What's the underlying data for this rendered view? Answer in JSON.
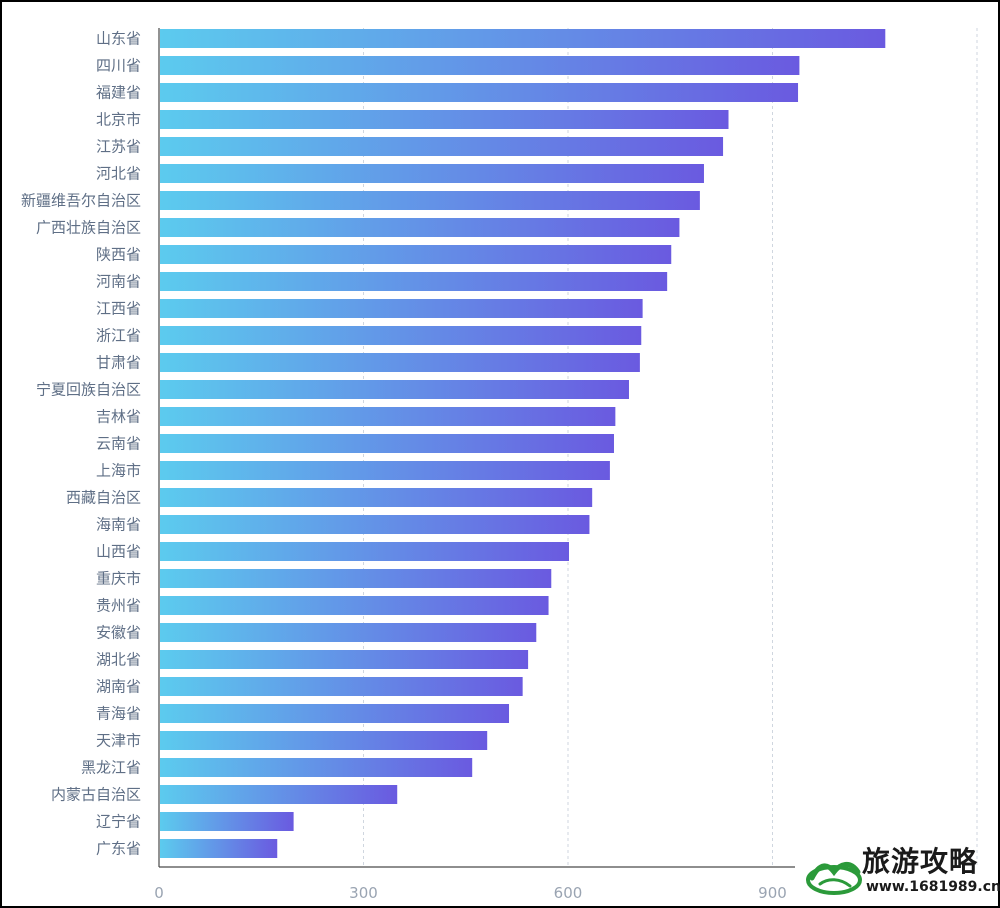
{
  "chart_data": {
    "type": "bar",
    "orientation": "horizontal",
    "categories": [
      "山东省",
      "四川省",
      "福建省",
      "北京市",
      "江苏省",
      "河北省",
      "新疆维吾尔自治区",
      "广西壮族自治区",
      "陕西省",
      "河南省",
      "江西省",
      "浙江省",
      "甘肃省",
      "宁夏回族自治区",
      "吉林省",
      "云南省",
      "上海市",
      "西藏自治区",
      "海南省",
      "山西省",
      "重庆市",
      "贵州省",
      "安徽省",
      "湖北省",
      "湖南省",
      "青海省",
      "天津市",
      "黑龙江省",
      "内蒙古自治区",
      "辽宁省",
      "广东省"
    ],
    "values": [
      1064,
      938,
      936,
      834,
      826,
      798,
      792,
      762,
      750,
      744,
      708,
      706,
      704,
      688,
      668,
      666,
      660,
      634,
      630,
      600,
      574,
      570,
      552,
      540,
      532,
      512,
      480,
      458,
      348,
      196,
      172
    ],
    "xticks": [
      "0",
      "300",
      "600",
      "900"
    ],
    "xlim": [
      0,
      1200
    ],
    "grid": true,
    "bar_gradient": [
      "#5ccbee",
      "#6a5ae0"
    ]
  },
  "watermark": {
    "title": "旅游攻略",
    "url": "www.1681989.cn"
  }
}
